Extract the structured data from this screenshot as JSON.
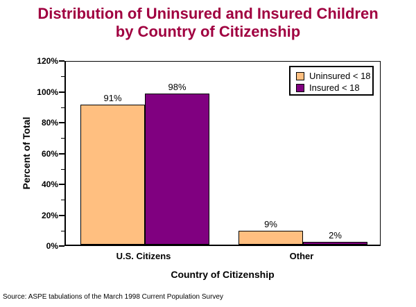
{
  "title_line1": "Distribution of Uninsured and Insured Children",
  "title_line2": "by Country of Citizenship",
  "source_note": "Source: ASPE tabulations of the March 1998 Current Population Survey",
  "colors": {
    "title": "#A00040",
    "uninsured_bar": "#FFBF80",
    "insured_bar": "#800080",
    "axis": "#000000",
    "background": "#FFFFFF"
  },
  "chart_data": {
    "type": "bar",
    "title": "Distribution of Uninsured and Insured Children by Country of Citizenship",
    "categories": [
      "U.S. Citizens",
      "Other"
    ],
    "series": [
      {
        "name": "Uninsured < 18",
        "color": "#FFBF80",
        "values": [
          91,
          9
        ],
        "labels": [
          "91%",
          "9%"
        ]
      },
      {
        "name": "Insured < 18",
        "color": "#800080",
        "values": [
          98,
          2
        ],
        "labels": [
          "98%",
          "2%"
        ]
      }
    ],
    "xlabel": "Country of Citizenship",
    "ylabel": "Percent of Total",
    "ylim": [
      0,
      120
    ],
    "yticks_major": [
      {
        "v": 0,
        "label": "0%"
      },
      {
        "v": 20,
        "label": "20%"
      },
      {
        "v": 40,
        "label": "40%"
      },
      {
        "v": 60,
        "label": "60%"
      },
      {
        "v": 80,
        "label": "80%"
      },
      {
        "v": 100,
        "label": "100%"
      },
      {
        "v": 120,
        "label": "120%"
      }
    ],
    "yticks_minor": [
      10,
      30,
      50,
      70,
      90,
      110
    ],
    "grid": false,
    "legend_position": "top-right"
  }
}
